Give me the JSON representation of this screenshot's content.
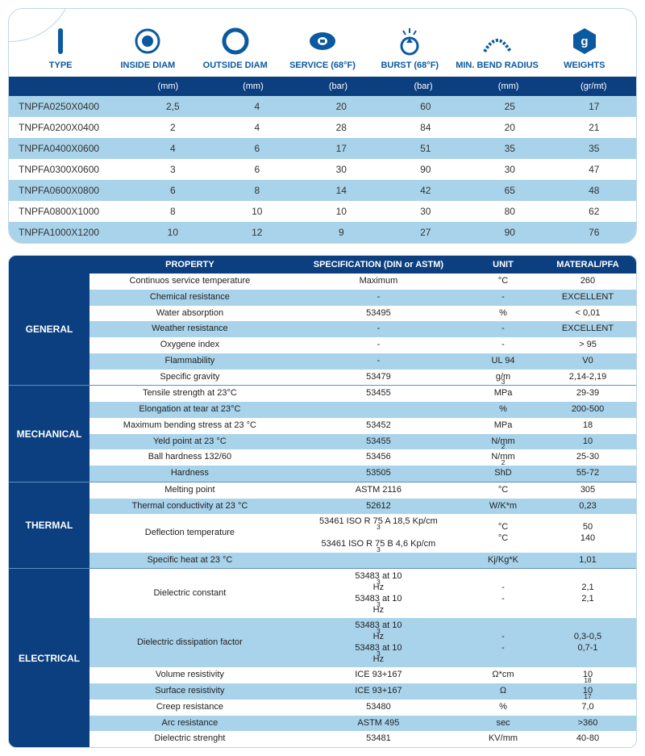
{
  "colors": {
    "header_bg": "#0b3f80",
    "stripe_alt": "#a9d3ea",
    "stripe_base": "#ffffff",
    "border": "#bcd6e6",
    "icon_label": "#0b5aa0"
  },
  "top_table": {
    "columns": [
      {
        "label": "TYPE",
        "unit": "",
        "icon": "type"
      },
      {
        "label": "INSIDE DIAM",
        "unit": "(mm)",
        "icon": "inside"
      },
      {
        "label": "OUTSIDE DIAM",
        "unit": "(mm)",
        "icon": "outside"
      },
      {
        "label": "SERVICE (68°F)",
        "unit": "(bar)",
        "icon": "service"
      },
      {
        "label": "BURST (68°F)",
        "unit": "(bar)",
        "icon": "burst"
      },
      {
        "label": "MIN. BEND RADIUS",
        "unit": "(mm)",
        "icon": "bend"
      },
      {
        "label": "WEIGHTS",
        "unit": "(gr/mt)",
        "icon": "weight"
      }
    ],
    "rows": [
      [
        "TNPFA0250X0400",
        "2,5",
        "4",
        "20",
        "60",
        "25",
        "17"
      ],
      [
        "TNPFA0200X0400",
        "2",
        "4",
        "28",
        "84",
        "20",
        "21"
      ],
      [
        "TNPFA0400X0600",
        "4",
        "6",
        "17",
        "51",
        "35",
        "35"
      ],
      [
        "TNPFA0300X0600",
        "3",
        "6",
        "30",
        "90",
        "30",
        "47"
      ],
      [
        "TNPFA0600X0800",
        "6",
        "8",
        "14",
        "42",
        "65",
        "48"
      ],
      [
        "TNPFA0800X1000",
        "8",
        "10",
        "10",
        "30",
        "80",
        "62"
      ],
      [
        "TNPFA1000X1200",
        "10",
        "12",
        "9",
        "27",
        "90",
        "76"
      ]
    ]
  },
  "props_table": {
    "headers": {
      "category": "",
      "property": "PROPERTY",
      "spec": "SPECIFICATION (DIN or ASTM)",
      "unit": "UNIT",
      "value": "MATERAL/PFA"
    },
    "categories": [
      {
        "name": "GENERAL",
        "rows": [
          {
            "property": "Continuos service temperature",
            "spec": "Maximum",
            "unit": "°C",
            "value": "260"
          },
          {
            "property": "Chemical resistance",
            "spec": "-",
            "unit": "-",
            "value": "EXCELLENT"
          },
          {
            "property": "Water absorption",
            "spec": "53495",
            "unit": "%",
            "value": "< 0,01"
          },
          {
            "property": "Weather resistance",
            "spec": "-",
            "unit": "-",
            "value": "EXCELLENT"
          },
          {
            "property": "Oxygene index",
            "spec": "-",
            "unit": "-",
            "value": "> 95"
          },
          {
            "property": "Flammability",
            "spec": "-",
            "unit": "UL 94",
            "value": "V0"
          },
          {
            "property": "Specific gravity",
            "spec": "53479",
            "unit_html": "g/m<sup>3</sup>",
            "value": "2,14-2,19"
          }
        ]
      },
      {
        "name": "MECHANICAL",
        "rows": [
          {
            "property": "Tensile strength at 23°C",
            "spec": "53455",
            "unit": "MPa",
            "value": "29-39"
          },
          {
            "property": "Elongation at tear at 23°C",
            "spec": "",
            "unit": "%",
            "value": "200-500"
          },
          {
            "property": "Maximum bending stress at 23 °C",
            "spec": "53452",
            "unit": "MPa",
            "value": "18"
          },
          {
            "property": "Yeld point at 23 °C",
            "spec": "53455",
            "unit_html": "N/mm<sup>2</sup>",
            "value": "10"
          },
          {
            "property": "Ball hardness 132/60",
            "spec": "53456",
            "unit_html": "N/mm<sup>2</sup>",
            "value": "25-30"
          },
          {
            "property": "Hardness",
            "spec": "53505",
            "unit": "ShD",
            "value": "55-72"
          }
        ]
      },
      {
        "name": "THERMAL",
        "rows": [
          {
            "property": "Melting point",
            "spec": "ASTM 2116",
            "unit": "°C",
            "value": "305"
          },
          {
            "property": "Thermal conductivity at 23 °C",
            "spec": "52612",
            "unit": "W/K*m",
            "value": "0,23"
          },
          {
            "property": "Deflection temperature",
            "spec_html": "53461 ISO R 75 A 18,5 Kp/cm<sup>3</sup><br>53461 ISO R 75 B 4,6 Kp/cm<sup>3</sup>",
            "unit_html": "°C<br>°C",
            "value_html": "50<br>140"
          },
          {
            "property": "Specific heat at 23 °C",
            "spec": "",
            "unit": "Kj/Kg*K",
            "value": "1,01"
          }
        ]
      },
      {
        "name": "ELECTRICAL",
        "rows": [
          {
            "property": "Dielectric constant",
            "spec_html": "53483 at 10<sup>3</sup> Hz<br>53483 at 10<sup>3</sup> Hz",
            "unit_html": "-<br>-",
            "value_html": "2,1<br>2,1"
          },
          {
            "property": "Dielectric dissipation factor",
            "spec_html": "53483 at 10<sup>3</sup> Hz<br>53483 at 10<sup>3</sup> Hz",
            "unit_html": "-<br>-",
            "value_html": "0,3-0,5<br>0,7-1"
          },
          {
            "property": "Volume resistivity",
            "spec": "ICE 93+167",
            "unit": "Ω*cm",
            "value_html": "10<sup>18</sup>"
          },
          {
            "property": "Surface resistivity",
            "spec": "ICE 93+167",
            "unit": "Ω",
            "value_html": "10<sup>17</sup>"
          },
          {
            "property": "Creep resistance",
            "spec": "53480",
            "unit": "%",
            "value": "7,0"
          },
          {
            "property": "Arc resistance",
            "spec": "ASTM 495",
            "unit": "sec",
            "value": ">360"
          },
          {
            "property": "Dielectric strenght",
            "spec": "53481",
            "unit": "KV/mm",
            "value": "40-80"
          }
        ]
      }
    ]
  }
}
